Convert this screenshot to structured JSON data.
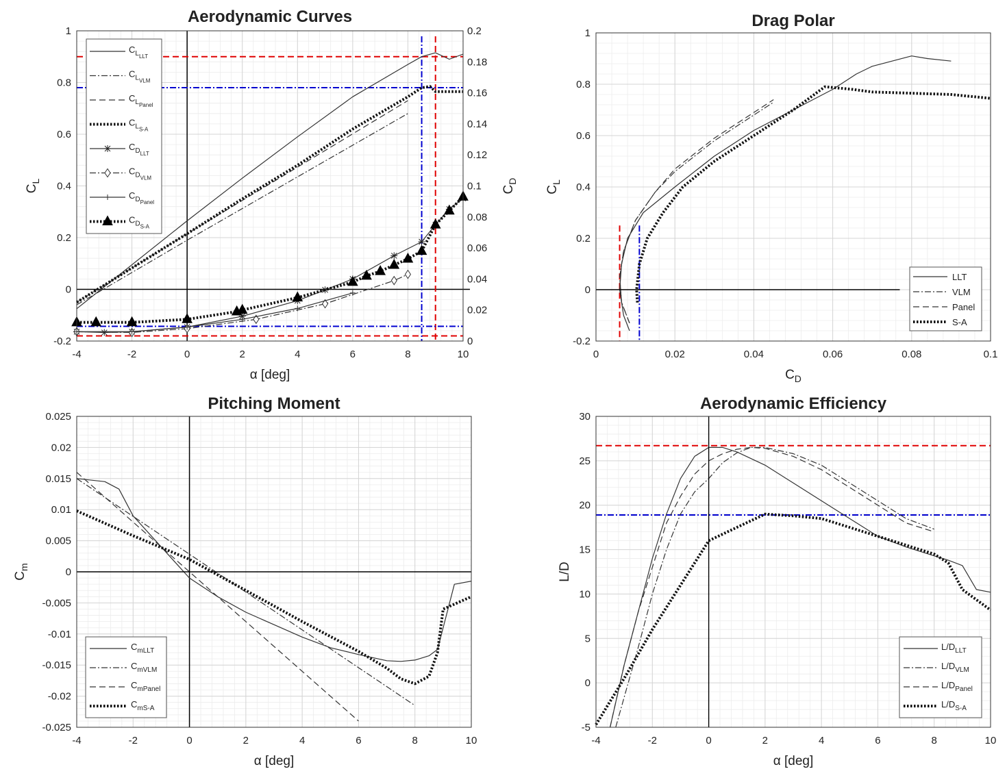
{
  "chart_data": [
    {
      "type": "line",
      "title": "Aerodynamic Curves",
      "xlabel": "α [deg]",
      "ylabel": "C_L",
      "y2label": "C_D",
      "xlim": [
        -4,
        10
      ],
      "ylim": [
        -0.2,
        1
      ],
      "y2lim": [
        0,
        0.2
      ],
      "xticks": [
        "-4",
        "-2",
        "0",
        "2",
        "4",
        "6",
        "8",
        "10"
      ],
      "yticks": [
        "-0.2",
        "0",
        "0.2",
        "0.4",
        "0.6",
        "0.8",
        "1"
      ],
      "y2ticks": [
        "0",
        "0.02",
        "0.04",
        "0.06",
        "0.08",
        "0.1",
        "0.12",
        "0.14",
        "0.16",
        "0.18",
        "0.2"
      ],
      "legend_position": "top-left",
      "series": [
        {
          "name": "C_L LLT",
          "axis": "left",
          "style": "solid",
          "x": [
            -4,
            0,
            2,
            4,
            6,
            8,
            8.5,
            9,
            9.5,
            10
          ],
          "y": [
            -0.075,
            0.265,
            0.43,
            0.59,
            0.745,
            0.87,
            0.9,
            0.915,
            0.89,
            0.91
          ]
        },
        {
          "name": "C_L VLM",
          "axis": "left",
          "style": "dashdot",
          "x": [
            -4,
            0,
            8
          ],
          "y": [
            -0.06,
            0.19,
            0.68
          ]
        },
        {
          "name": "C_L Panel",
          "axis": "left",
          "style": "dashed",
          "x": [
            -4,
            0,
            8
          ],
          "y": [
            -0.05,
            0.215,
            0.73
          ]
        },
        {
          "name": "C_L S-A",
          "axis": "left",
          "style": "dotted",
          "x": [
            -4,
            0,
            2,
            4,
            6,
            8,
            8.5,
            8.8,
            9,
            10
          ],
          "y": [
            -0.05,
            0.215,
            0.35,
            0.48,
            0.62,
            0.745,
            0.78,
            0.785,
            0.765,
            0.765
          ]
        },
        {
          "name": "C_D LLT",
          "axis": "right",
          "style": "solid",
          "marker": "star",
          "x": [
            -4,
            -3,
            -2,
            0,
            2,
            4,
            5,
            6,
            7.5,
            8.5,
            9,
            9.5,
            10
          ],
          "y": [
            0.006,
            0.0055,
            0.006,
            0.009,
            0.016,
            0.026,
            0.033,
            0.04,
            0.055,
            0.064,
            0.075,
            0.085,
            0.092
          ]
        },
        {
          "name": "C_D VLM",
          "axis": "right",
          "style": "dashdot",
          "marker": "diamond",
          "x": [
            -4,
            -2,
            0,
            2.5,
            5,
            7.5,
            8
          ],
          "y": [
            0.006,
            0.0055,
            0.008,
            0.014,
            0.024,
            0.039,
            0.043
          ]
        },
        {
          "name": "C_D Panel",
          "axis": "right",
          "style": "solid",
          "marker": "plus",
          "x": [
            -4,
            -2,
            0,
            2,
            4,
            6
          ],
          "y": [
            0.006,
            0.006,
            0.009,
            0.014,
            0.021,
            0.031
          ]
        },
        {
          "name": "C_D S-A",
          "axis": "right",
          "style": "dotted",
          "marker": "triangle",
          "x": [
            -4,
            -3.3,
            -2,
            0,
            1.8,
            2,
            4,
            6,
            6.5,
            7,
            7.5,
            8,
            8.5,
            9,
            9.5,
            10
          ],
          "y": [
            0.012,
            0.012,
            0.012,
            0.014,
            0.019,
            0.02,
            0.028,
            0.038,
            0.042,
            0.045,
            0.049,
            0.053,
            0.058,
            0.075,
            0.084,
            0.093
          ]
        }
      ],
      "reference_lines": [
        {
          "orient": "h",
          "value": 0.9,
          "color": "#e00000",
          "style": "dashed"
        },
        {
          "orient": "h",
          "value": -0.18,
          "color": "#e00000",
          "style": "dashed"
        },
        {
          "orient": "v",
          "value": 9,
          "color": "#e00000",
          "style": "dashed"
        },
        {
          "orient": "h",
          "value": 0.78,
          "color": "#0000d0",
          "style": "dashdot"
        },
        {
          "orient": "h",
          "value": -0.143,
          "color": "#0000d0",
          "style": "dashdot"
        },
        {
          "orient": "v",
          "value": 8.5,
          "color": "#0000d0",
          "style": "dashdot"
        }
      ]
    },
    {
      "type": "line",
      "title": "Drag Polar",
      "xlabel": "C_D",
      "ylabel": "C_L",
      "xlim": [
        0,
        0.1
      ],
      "ylim": [
        -0.2,
        1
      ],
      "xticks": [
        "0",
        "0.02",
        "0.04",
        "0.06",
        "0.08",
        "0.1"
      ],
      "yticks": [
        "-0.2",
        "0",
        "0.2",
        "0.4",
        "0.6",
        "0.8",
        "1"
      ],
      "legend_position": "bottom-right",
      "legend": [
        "LLT",
        "VLM",
        "Panel",
        "S-A"
      ],
      "series": [
        {
          "name": "LLT",
          "style": "solid",
          "x": [
            0.0085,
            0.007,
            0.006,
            0.0065,
            0.008,
            0.012,
            0.02,
            0.03,
            0.04,
            0.05,
            0.06,
            0.066,
            0.07,
            0.08,
            0.084,
            0.09
          ],
          "y": [
            -0.16,
            -0.1,
            0,
            0.1,
            0.2,
            0.3,
            0.4,
            0.52,
            0.62,
            0.7,
            0.78,
            0.84,
            0.87,
            0.91,
            0.9,
            0.89
          ]
        },
        {
          "name": "VLM",
          "style": "dashdot",
          "x": [
            0.0085,
            0.0065,
            0.006,
            0.007,
            0.01,
            0.015,
            0.02,
            0.03,
            0.045
          ],
          "y": [
            -0.13,
            -0.05,
            0.05,
            0.15,
            0.27,
            0.38,
            0.46,
            0.58,
            0.73
          ]
        },
        {
          "name": "Panel",
          "style": "dashed",
          "x": [
            0.0085,
            0.0065,
            0.006,
            0.007,
            0.01,
            0.015,
            0.02,
            0.03,
            0.045
          ],
          "y": [
            -0.13,
            -0.05,
            0.05,
            0.15,
            0.27,
            0.38,
            0.47,
            0.59,
            0.74
          ]
        },
        {
          "name": "S-A",
          "style": "dotted",
          "x": [
            0.0105,
            0.0103,
            0.011,
            0.013,
            0.017,
            0.022,
            0.03,
            0.04,
            0.05,
            0.058,
            0.065,
            0.07,
            0.08,
            0.09,
            0.1
          ],
          "y": [
            -0.05,
            0,
            0.1,
            0.2,
            0.3,
            0.4,
            0.5,
            0.6,
            0.7,
            0.79,
            0.78,
            0.77,
            0.765,
            0.76,
            0.745
          ]
        },
        {
          "name": "zero",
          "style": "solid",
          "x": [
            0,
            0.077
          ],
          "y": [
            0,
            0
          ]
        }
      ],
      "reference_lines": [
        {
          "orient": "v",
          "value": 0.006,
          "color": "#e00000",
          "style": "dashed",
          "range": [
            -0.2,
            0.25
          ]
        },
        {
          "orient": "v",
          "value": 0.011,
          "color": "#0000d0",
          "style": "dashdot",
          "range": [
            -0.2,
            0.25
          ]
        }
      ]
    },
    {
      "type": "line",
      "title": "Pitching Moment",
      "xlabel": "α [deg]",
      "ylabel": "C_m",
      "xlim": [
        -4,
        10
      ],
      "ylim": [
        -0.025,
        0.025
      ],
      "xticks": [
        "-4",
        "-2",
        "0",
        "2",
        "4",
        "6",
        "8",
        "10"
      ],
      "yticks": [
        "-0.025",
        "-0.02",
        "-0.015",
        "-0.01",
        "-0.005",
        "0",
        "0.005",
        "0.01",
        "0.015",
        "0.02",
        "0.025"
      ],
      "legend_position": "bottom-left",
      "series": [
        {
          "name": "C_m LLT",
          "style": "solid",
          "x": [
            -4,
            -3,
            -2.5,
            -2,
            -1,
            0,
            1,
            2,
            3,
            4,
            5,
            6,
            7,
            7.5,
            8,
            8.5,
            8.8,
            9,
            9.4,
            10
          ],
          "y": [
            0.015,
            0.0145,
            0.0133,
            0.009,
            0.004,
            -0.001,
            -0.004,
            -0.0065,
            -0.0085,
            -0.0105,
            -0.0122,
            -0.0133,
            -0.0143,
            -0.0144,
            -0.0142,
            -0.0135,
            -0.0125,
            -0.009,
            -0.002,
            -0.0015
          ]
        },
        {
          "name": "C_m VLM",
          "style": "dashdot",
          "x": [
            -4,
            8
          ],
          "y": [
            0.015,
            -0.0215
          ]
        },
        {
          "name": "C_m Panel",
          "style": "dashed",
          "x": [
            -4,
            6
          ],
          "y": [
            0.016,
            -0.024
          ]
        },
        {
          "name": "C_m S-A",
          "style": "dotted",
          "x": [
            -4,
            -2,
            0,
            2,
            4,
            6,
            7,
            7.5,
            8,
            8.5,
            8.8,
            9,
            10
          ],
          "y": [
            0.0098,
            0.0058,
            0.002,
            -0.003,
            -0.008,
            -0.0128,
            -0.0155,
            -0.0172,
            -0.018,
            -0.0168,
            -0.013,
            -0.006,
            -0.004
          ]
        },
        {
          "name": "zero",
          "style": "solid",
          "x": [
            -4,
            10
          ],
          "y": [
            0,
            0
          ]
        }
      ]
    },
    {
      "type": "line",
      "title": "Aerodynamic Efficiency",
      "xlabel": "α [deg]",
      "ylabel": "L/D",
      "xlim": [
        -4,
        10
      ],
      "ylim": [
        -5,
        30
      ],
      "xticks": [
        "-4",
        "-2",
        "0",
        "2",
        "4",
        "6",
        "8",
        "10"
      ],
      "yticks": [
        "-5",
        "0",
        "5",
        "10",
        "15",
        "20",
        "25",
        "30"
      ],
      "legend_position": "bottom-right",
      "series": [
        {
          "name": "L/D LLT",
          "style": "solid",
          "x": [
            -3.5,
            -3,
            -2.5,
            -2,
            -1.5,
            -1,
            -0.5,
            0,
            0.5,
            1,
            2,
            3,
            4,
            5,
            6,
            7,
            8,
            8.5,
            9,
            9.5,
            10
          ],
          "y": [
            -5,
            2,
            8,
            14,
            19,
            23,
            25.5,
            26.5,
            26.5,
            26,
            24.5,
            22.5,
            20.5,
            18.5,
            16.5,
            15.3,
            14.3,
            13.8,
            13.2,
            10.5,
            10.2
          ]
        },
        {
          "name": "L/D VLM",
          "style": "dashdot",
          "x": [
            -3.3,
            -2.5,
            -2,
            -1.5,
            -1,
            -0.5,
            0,
            0.5,
            1,
            1.5,
            2,
            3,
            4,
            5,
            6,
            7,
            8
          ],
          "y": [
            -5,
            4,
            10,
            15,
            19,
            21.5,
            23,
            24.8,
            25.9,
            26.5,
            26.5,
            25.8,
            24.5,
            22.5,
            20.5,
            18.5,
            17.3
          ]
        },
        {
          "name": "L/D Panel",
          "style": "dashed",
          "x": [
            -3.5,
            -3,
            -2.5,
            -2,
            -1.5,
            -1,
            -0.5,
            0,
            0.5,
            1,
            1.5,
            2,
            3,
            4,
            5,
            6,
            7,
            8
          ],
          "y": [
            -5,
            2,
            8,
            13,
            18,
            21,
            23.5,
            25,
            25.8,
            26.3,
            26.5,
            26.4,
            25.5,
            24,
            22,
            20,
            18,
            17
          ]
        },
        {
          "name": "L/D S-A",
          "style": "dotted",
          "x": [
            -4,
            -3,
            -2,
            -1,
            0,
            1,
            2,
            3,
            4,
            5,
            6,
            7,
            8,
            8.5,
            9,
            10
          ],
          "y": [
            -4.7,
            0.5,
            6,
            11,
            16,
            17.5,
            19,
            18.8,
            18.5,
            17.5,
            16.5,
            15.5,
            14.5,
            13.5,
            10.5,
            8.2
          ]
        },
        {
          "name": "zero-vertical",
          "style": "solid",
          "x": [
            0,
            0
          ],
          "y": [
            -5,
            30
          ]
        }
      ],
      "reference_lines": [
        {
          "orient": "h",
          "value": 26.7,
          "color": "#e00000",
          "style": "dashed"
        },
        {
          "orient": "h",
          "value": 18.9,
          "color": "#0000d0",
          "style": "dashdot"
        }
      ]
    }
  ],
  "legends": {
    "chart0": [
      {
        "main": "C",
        "sub": "L",
        "sub2": "LLT"
      },
      {
        "main": "C",
        "sub": "L",
        "sub2": "VLM"
      },
      {
        "main": "C",
        "sub": "L",
        "sub2": "Panel"
      },
      {
        "main": "C",
        "sub": "L",
        "sub2": "S-A"
      },
      {
        "main": "C",
        "sub": "D",
        "sub2": "LLT"
      },
      {
        "main": "C",
        "sub": "D",
        "sub2": "VLM"
      },
      {
        "main": "C",
        "sub": "D",
        "sub2": "Panel"
      },
      {
        "main": "C",
        "sub": "D",
        "sub2": "S-A"
      }
    ],
    "chart2": [
      {
        "main": "C",
        "sub": "mLLT"
      },
      {
        "main": "C",
        "sub": "mVLM"
      },
      {
        "main": "C",
        "sub": "mPanel"
      },
      {
        "main": "C",
        "sub": "mS-A"
      }
    ],
    "chart3": [
      {
        "main": "L/D",
        "sub": "LLT"
      },
      {
        "main": "L/D",
        "sub": "VLM"
      },
      {
        "main": "L/D",
        "sub": "Panel"
      },
      {
        "main": "L/D",
        "sub": "S-A"
      }
    ]
  }
}
